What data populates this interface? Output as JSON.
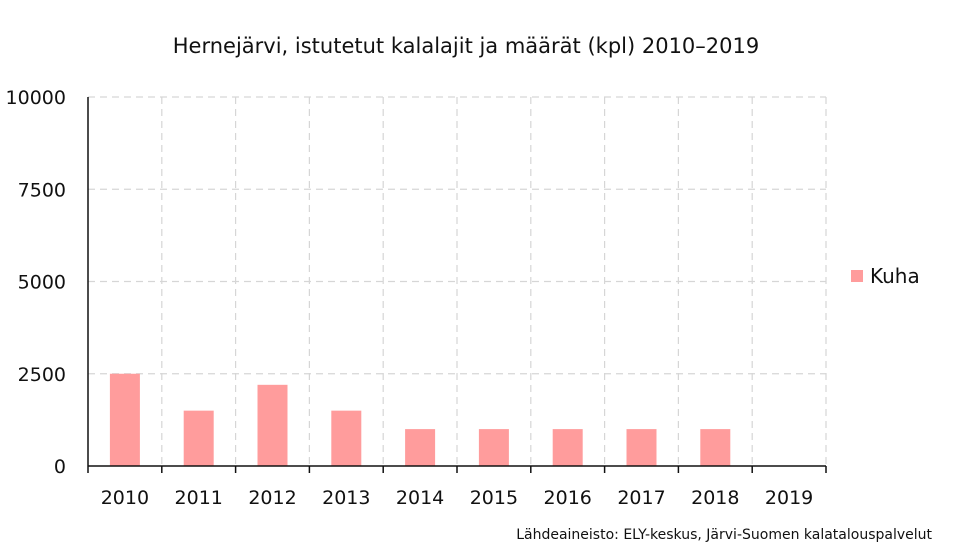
{
  "chart_data": {
    "type": "bar",
    "title": "Hernejärvi, istutetut kalalajit ja määrät (kpl) 2010–2019",
    "categories": [
      "2010",
      "2011",
      "2012",
      "2013",
      "2014",
      "2015",
      "2016",
      "2017",
      "2018",
      "2019"
    ],
    "series": [
      {
        "name": "Kuha",
        "values": [
          2500,
          1500,
          2200,
          1500,
          1000,
          1000,
          1000,
          1000,
          1000,
          0
        ],
        "color": "#ff9c9c"
      }
    ],
    "ylim": [
      0,
      10000
    ],
    "yticks": [
      "0",
      "2500",
      "5000",
      "7500",
      "10000"
    ],
    "grid": true,
    "legend_position": "right",
    "source": "Lähdeaineisto: ELY-keskus, Järvi-Suomen kalatalouspalvelut"
  }
}
